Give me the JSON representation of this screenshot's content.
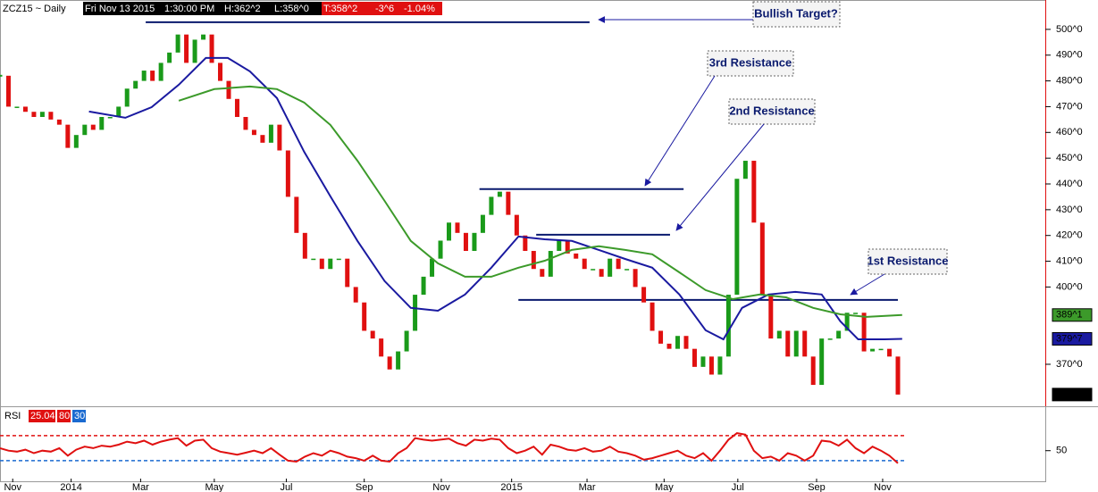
{
  "header": {
    "symbol": "ZCZ15 ~ Daily",
    "date": "Fri Nov 13 2015",
    "time": "1:30:00 PM",
    "high": "H:362^2",
    "low": "L:358^0",
    "last": "T:358^2",
    "change": "-3^6",
    "percent": "-1.04%"
  },
  "chart_data": {
    "type": "candlestick",
    "x": [
      0,
      1,
      2,
      3,
      4,
      5,
      6,
      7,
      8,
      9,
      10,
      11,
      12,
      13,
      14,
      15,
      16,
      17,
      18,
      19,
      20,
      21,
      22,
      23,
      24,
      25,
      26,
      27,
      28,
      29,
      30,
      31,
      32,
      33,
      34,
      35,
      36,
      37,
      38,
      39,
      40,
      41,
      42,
      43,
      44,
      45,
      46,
      47,
      48,
      49,
      50,
      51,
      52,
      53,
      54,
      55,
      56,
      57,
      58,
      59,
      60,
      61,
      62,
      63,
      64,
      65,
      66,
      67,
      68,
      69,
      70,
      71,
      72,
      73,
      74,
      75,
      76,
      77,
      78,
      79,
      80,
      81,
      82,
      83,
      84,
      85,
      86,
      87,
      88,
      89,
      90,
      91,
      92,
      93,
      94,
      95,
      96,
      97,
      98,
      99,
      100,
      101,
      102,
      103,
      104,
      105,
      106
    ],
    "close": [
      482,
      470,
      470,
      468,
      466,
      468,
      465,
      463,
      454,
      459,
      463,
      461,
      466,
      466,
      470,
      477,
      480,
      484,
      480,
      487,
      491,
      498,
      487,
      496,
      498,
      487,
      480,
      473,
      466,
      461,
      459,
      456,
      463,
      453,
      435,
      421,
      411,
      411,
      407,
      411,
      411,
      400,
      394,
      383,
      380,
      373,
      368,
      375,
      383,
      397,
      404,
      411,
      418,
      425,
      421,
      414,
      421,
      428,
      435,
      437,
      428,
      420,
      414,
      407,
      404,
      414,
      418,
      413,
      411,
      407,
      407,
      404,
      411,
      407,
      407,
      400,
      394,
      383,
      378,
      376,
      381,
      376,
      369,
      373,
      366,
      373,
      397,
      442,
      449,
      425,
      397,
      380,
      383,
      373,
      383,
      373,
      362,
      380,
      380,
      383,
      390,
      390,
      375,
      376,
      376,
      373,
      358.25
    ],
    "up_color": "#1a9a1a",
    "down_color": "#e01010",
    "moving_averages": [
      {
        "color": "#1a1aa0",
        "x": [
          10.5,
          14.8,
          17.9,
          21.1,
          24.3,
          26.9,
          29.5,
          32.7,
          35.9,
          39,
          42.2,
          45.4,
          48.5,
          51.7,
          54.9,
          58,
          61.2,
          64.3,
          67.5,
          70.7,
          73.8,
          77,
          80.2,
          83.3,
          85.4,
          87.6,
          90.7,
          93.9,
          97,
          99.2,
          101.3,
          104.4,
          106.5
        ],
        "values": [
          468.1,
          465.7,
          469.8,
          478.5,
          488.9,
          488.9,
          483.7,
          473.3,
          452.5,
          435.2,
          417.9,
          402.3,
          391.9,
          390.8,
          397.1,
          407.5,
          419.6,
          418.5,
          417.9,
          414.4,
          410.9,
          407.5,
          397.1,
          383.2,
          379.7,
          391.9,
          397.1,
          398.1,
          397.1,
          386.7,
          379.7,
          379.7,
          379.875
        ],
        "tag": {
          "value": 379.875,
          "label": "379^7"
        }
      },
      {
        "color": "#3c9a2a",
        "x": [
          21.1,
          25.3,
          29.5,
          32.7,
          35.9,
          39,
          42.2,
          45.4,
          48.5,
          51.7,
          54.9,
          58,
          61.2,
          64.3,
          67.5,
          70.7,
          73.8,
          77,
          80.2,
          83.3,
          86.5,
          89.7,
          92.8,
          96,
          99.2,
          102.3,
          106.5
        ],
        "values": [
          472.3,
          476.8,
          477.8,
          476.8,
          471.6,
          462.9,
          449.0,
          433.4,
          417.9,
          409.2,
          404.0,
          404.0,
          407.5,
          410.2,
          414.4,
          415.8,
          414.4,
          412.7,
          405.7,
          398.8,
          395.3,
          397.1,
          396.0,
          391.9,
          389.4,
          388.4,
          389.125
        ],
        "tag": {
          "value": 389.125,
          "label": "389^1"
        }
      }
    ],
    "last_tag": {
      "value": 358.25,
      "label": "358^2"
    },
    "levels": [
      {
        "value": 502.8,
        "x": [
          17.2,
          69.6
        ]
      },
      {
        "value": 438,
        "x": [
          56.6,
          80.7
        ]
      },
      {
        "value": 420.3,
        "x": [
          63.3,
          79.1
        ]
      },
      {
        "value": 395,
        "x": [
          61.2,
          106
        ]
      }
    ],
    "annotations": [
      "Bullish Target?",
      "3rd Resistance",
      "2nd Resistance",
      "1st Resistance"
    ],
    "xlim": [
      0,
      123.4
    ],
    "ylim": [
      353.7,
      511.4
    ],
    "xticks": [
      {
        "value": 1.5,
        "label": "Nov"
      },
      {
        "value": 8.4,
        "label": "2014"
      },
      {
        "value": 16.6,
        "label": "Mar"
      },
      {
        "value": 25.3,
        "label": "May"
      },
      {
        "value": 33.8,
        "label": "Jul"
      },
      {
        "value": 43,
        "label": "Sep"
      },
      {
        "value": 52.1,
        "label": "Nov"
      },
      {
        "value": 60.4,
        "label": "2015"
      },
      {
        "value": 69.3,
        "label": "Mar"
      },
      {
        "value": 78.4,
        "label": "May"
      },
      {
        "value": 87.1,
        "label": "Jul"
      },
      {
        "value": 96.4,
        "label": "Sep"
      },
      {
        "value": 104.2,
        "label": "Nov"
      }
    ],
    "yticks": [
      {
        "value": 500,
        "label": "500^0"
      },
      {
        "value": 490,
        "label": "490^0"
      },
      {
        "value": 480,
        "label": "480^0"
      },
      {
        "value": 470,
        "label": "470^0"
      },
      {
        "value": 460,
        "label": "460^0"
      },
      {
        "value": 450,
        "label": "450^0"
      },
      {
        "value": 440,
        "label": "440^0"
      },
      {
        "value": 430,
        "label": "430^0"
      },
      {
        "value": 420,
        "label": "420^0"
      },
      {
        "value": 410,
        "label": "410^0"
      },
      {
        "value": 400,
        "label": "400^0"
      },
      {
        "value": 370,
        "label": "370^0"
      }
    ],
    "rsi": {
      "label": "RSI",
      "color": "#e01010",
      "values": [
        55,
        50,
        48,
        52,
        45,
        50,
        48,
        55,
        40,
        52,
        58,
        55,
        60,
        58,
        62,
        68,
        65,
        70,
        62,
        68,
        72,
        75,
        60,
        70,
        72,
        55,
        48,
        45,
        42,
        46,
        50,
        45,
        55,
        42,
        30,
        28,
        38,
        45,
        40,
        50,
        45,
        38,
        35,
        30,
        40,
        30,
        28,
        45,
        55,
        75,
        72,
        70,
        72,
        74,
        65,
        60,
        72,
        70,
        74,
        72,
        55,
        45,
        50,
        58,
        42,
        62,
        58,
        52,
        50,
        55,
        48,
        50,
        58,
        48,
        45,
        40,
        32,
        35,
        40,
        45,
        50,
        40,
        35,
        45,
        30,
        50,
        72,
        85,
        82,
        50,
        35,
        38,
        30,
        45,
        40,
        30,
        40,
        70,
        68,
        60,
        72,
        55,
        45,
        58,
        50,
        40,
        25.04
      ],
      "upper": 80,
      "lower": 30,
      "upper_color": "#e01010",
      "lower_color": "#1a6ad0",
      "ylim": [
        -13,
        137
      ],
      "yticks": [
        50
      ]
    }
  }
}
